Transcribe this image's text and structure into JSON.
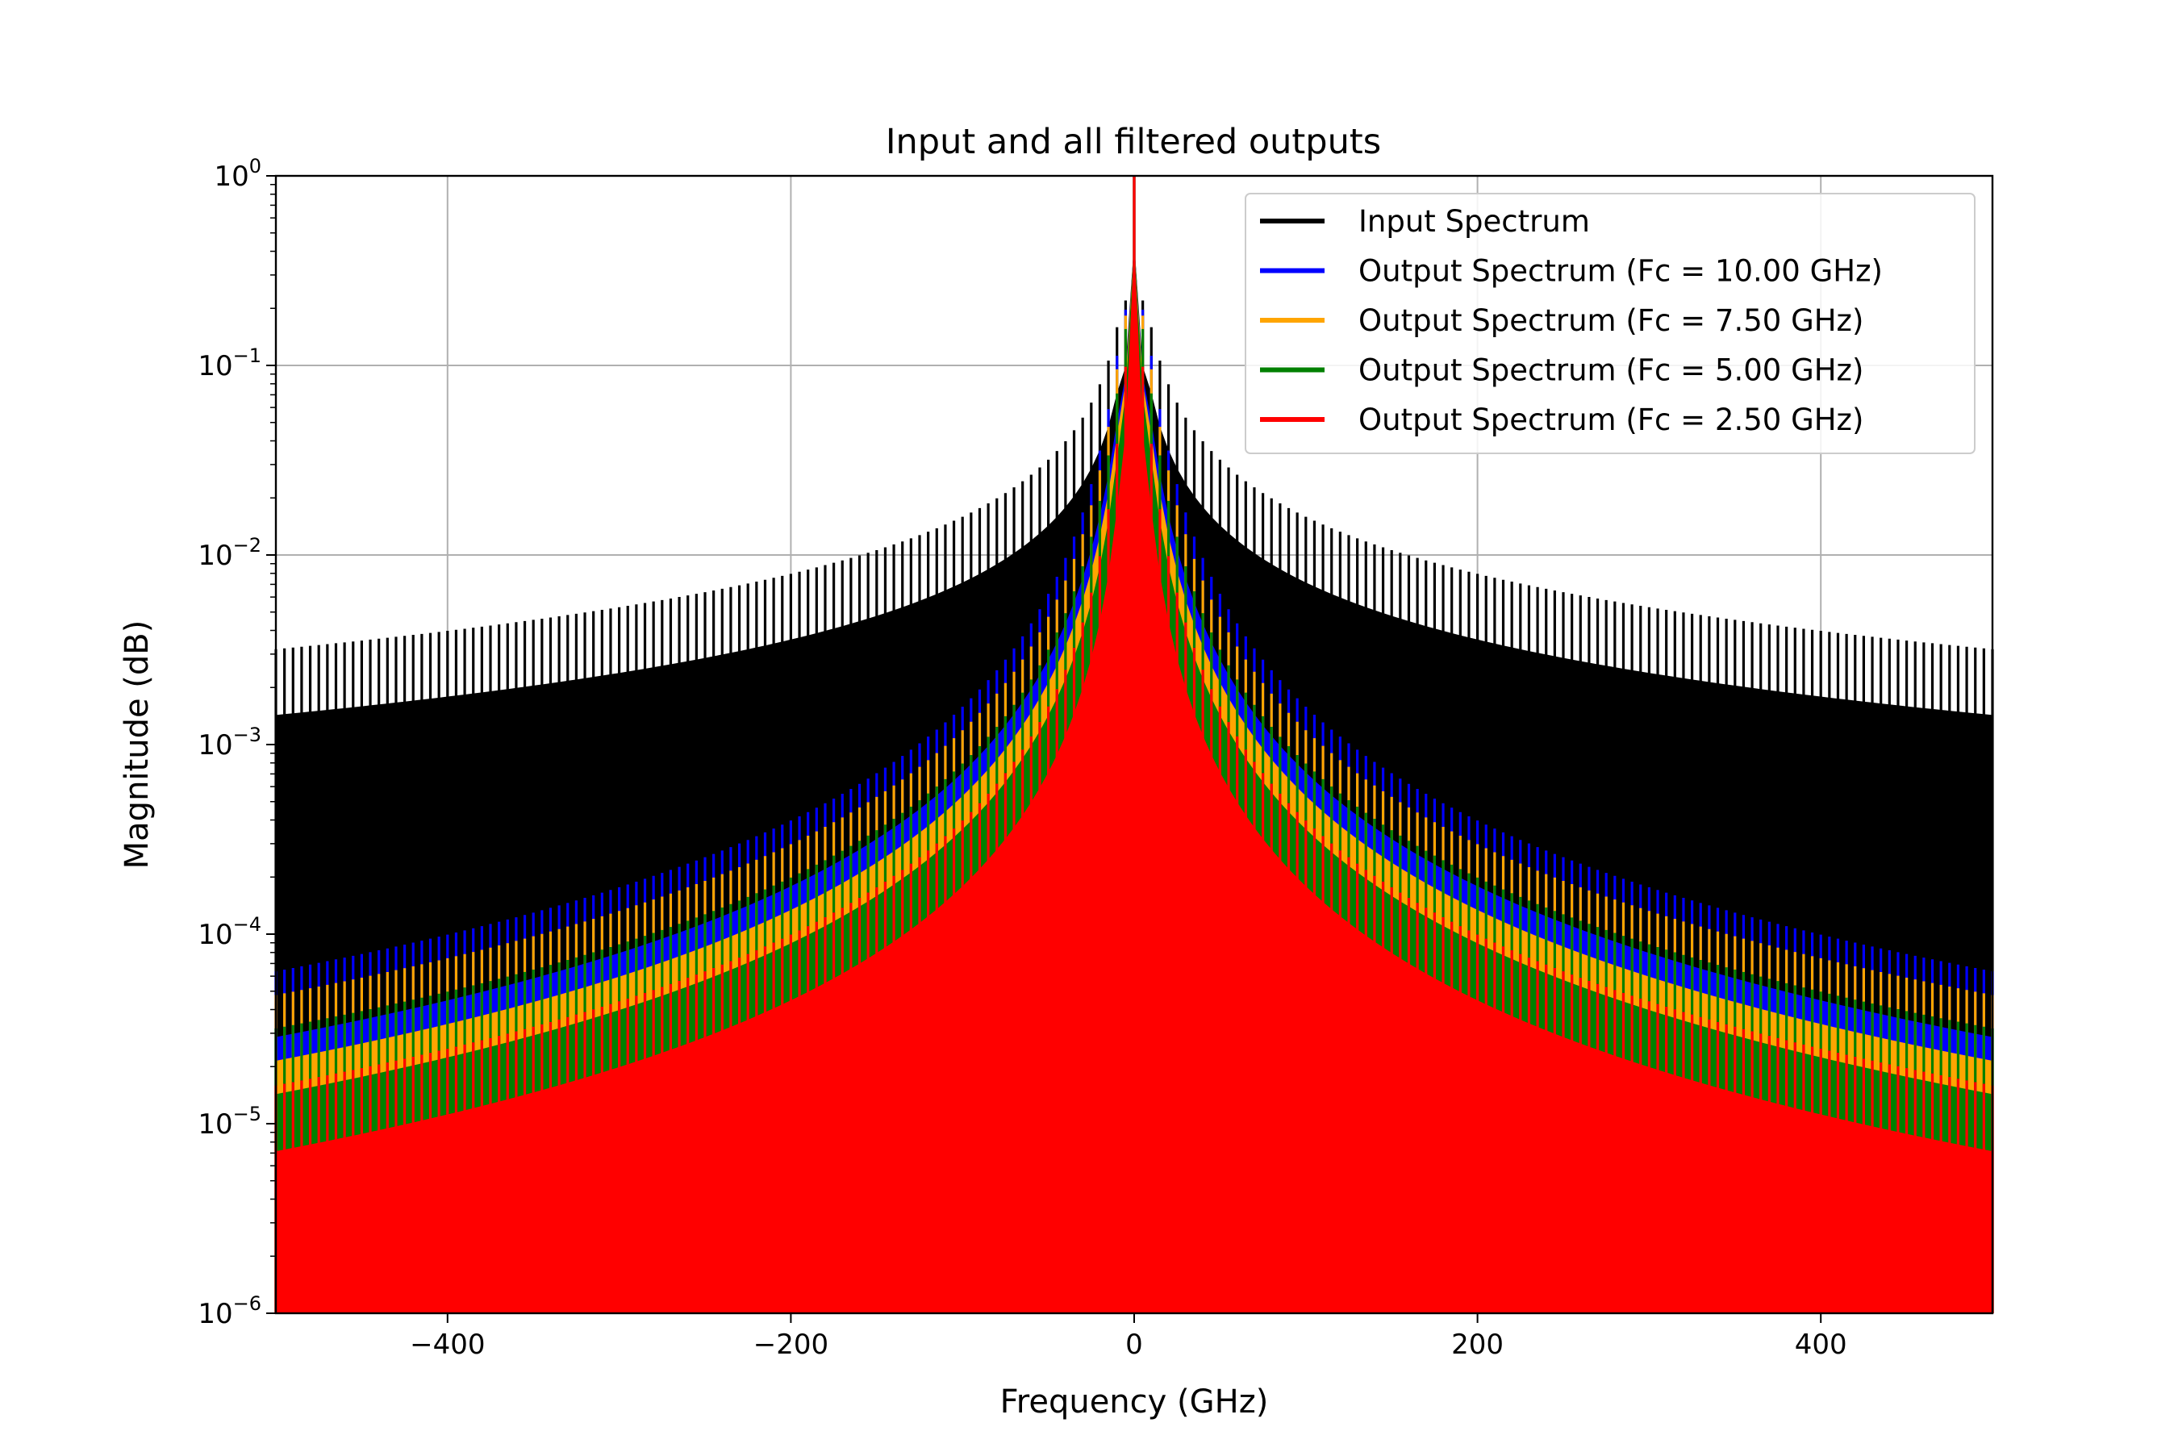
{
  "chart_data": {
    "type": "line",
    "title": "Input and all filtered outputs",
    "xlabel": "Frequency (GHz)",
    "ylabel": "Magnitude (dB)",
    "xlim": [
      -500,
      500
    ],
    "ylim": [
      1e-06,
      1
    ],
    "yscale": "log",
    "grid": true,
    "legend_position": "top-right",
    "x_ticks": [
      {
        "value": -400,
        "label": "−400"
      },
      {
        "value": -200,
        "label": "−200"
      },
      {
        "value": 0,
        "label": "0"
      },
      {
        "value": 200,
        "label": "200"
      },
      {
        "value": 400,
        "label": "400"
      }
    ],
    "y_ticks": [
      {
        "value": 1,
        "base": "10",
        "exp": "0"
      },
      {
        "value": 0.1,
        "base": "10",
        "exp": "−1"
      },
      {
        "value": 0.01,
        "base": "10",
        "exp": "−2"
      },
      {
        "value": 0.001,
        "base": "10",
        "exp": "−3"
      },
      {
        "value": 0.0001,
        "base": "10",
        "exp": "−4"
      },
      {
        "value": 1e-05,
        "base": "10",
        "exp": "−5"
      },
      {
        "value": 1e-06,
        "base": "10",
        "exp": "−6"
      }
    ],
    "harmonic_spacing_ghz": 5,
    "series": [
      {
        "name": "Input Spectrum",
        "color": "#000000",
        "fc_ghz": null,
        "envelope": {
          "peak": 1.0,
          "near_500": 0.002
        }
      },
      {
        "name": "Output Spectrum (Fc = 10.00 GHz)",
        "color": "#0000ff",
        "fc_ghz": 10.0,
        "envelope": {
          "peak": 1.0,
          "near_500": 4e-05
        }
      },
      {
        "name": "Output Spectrum (Fc = 7.50 GHz)",
        "color": "#ffa500",
        "fc_ghz": 7.5,
        "envelope": {
          "peak": 1.0,
          "near_500": 3e-05
        }
      },
      {
        "name": "Output Spectrum (Fc = 5.00 GHz)",
        "color": "#008000",
        "fc_ghz": 5.0,
        "envelope": {
          "peak": 1.0,
          "near_500": 2e-05
        }
      },
      {
        "name": "Output Spectrum (Fc = 2.50 GHz)",
        "color": "#ff0000",
        "fc_ghz": 2.5,
        "envelope": {
          "peak": 1.0,
          "near_500": 1e-05
        }
      }
    ]
  }
}
